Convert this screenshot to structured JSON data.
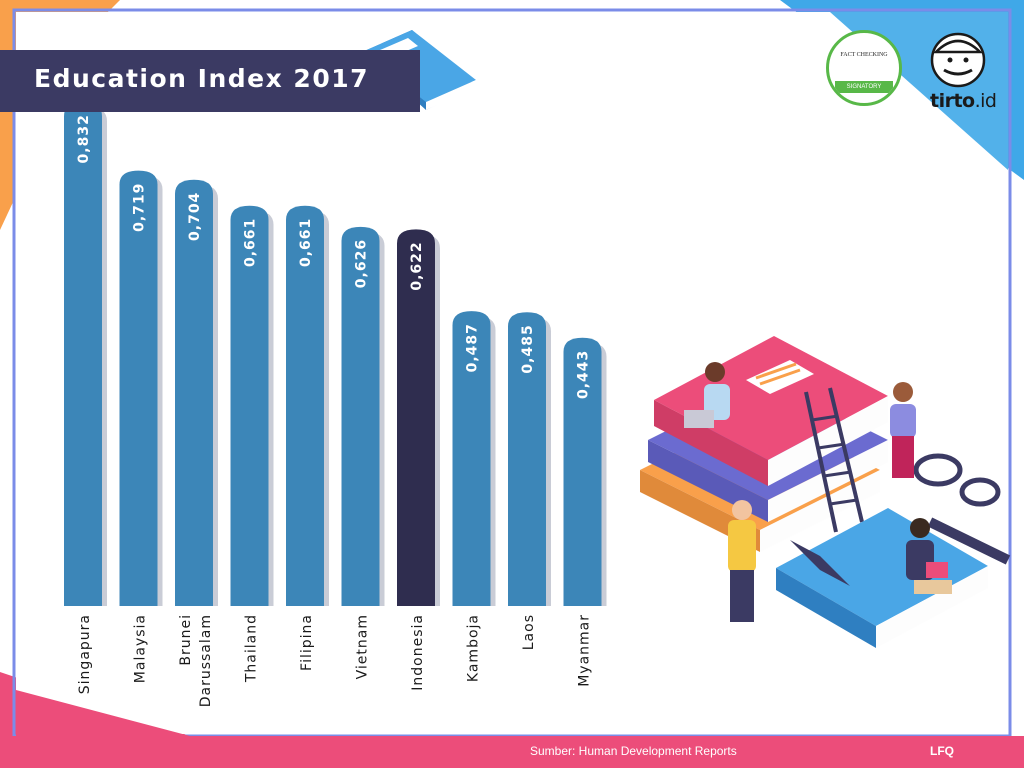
{
  "header": {
    "title": "Education Index 2017"
  },
  "footer": {
    "source": "Sumber: Human Development Reports",
    "credit": "LFQ"
  },
  "badge": {
    "top_text": "FACT CHECKING",
    "ribbon_text": "SIGNATORY"
  },
  "logo": {
    "brand": "tirto",
    "suffix": ".id"
  },
  "colors": {
    "bar_default": "#3c86b8",
    "bar_highlight": "#2f2d4f",
    "title_background": "#3b3a63",
    "footer_background": "#ec4d7a",
    "accent_orange": "#f9a04b",
    "accent_blue": "#3fa8e8"
  },
  "icons": [
    "book-icon",
    "fact-check-badge-icon",
    "mascot-logo-icon",
    "education-illustration"
  ],
  "chart_data": {
    "type": "bar",
    "title": "Education Index 2017",
    "categories": [
      "Singapura",
      "Malaysia",
      "Brunei Darussalam",
      "Thailand",
      "Filipina",
      "Vietnam",
      "Indonesia",
      "Kamboja",
      "Laos",
      "Myanmar"
    ],
    "category_lines": [
      [
        "Singapura"
      ],
      [
        "Malaysia"
      ],
      [
        "Brunei",
        "Darussalam"
      ],
      [
        "Thailand"
      ],
      [
        "Filipina"
      ],
      [
        "Vietnam"
      ],
      [
        "Indonesia"
      ],
      [
        "Kamboja"
      ],
      [
        "Laos"
      ],
      [
        "Myanmar"
      ]
    ],
    "values": [
      0.832,
      0.719,
      0.704,
      0.661,
      0.661,
      0.626,
      0.622,
      0.487,
      0.485,
      0.443
    ],
    "value_labels": [
      "0,832",
      "0,719",
      "0,704",
      "0,661",
      "0,661",
      "0,626",
      "0,622",
      "0,487",
      "0,485",
      "0,443"
    ],
    "highlight": "Indonesia",
    "ylim": [
      0,
      0.9
    ],
    "grid": false,
    "legend": "none"
  }
}
